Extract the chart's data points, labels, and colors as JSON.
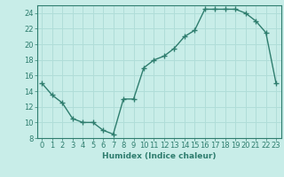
{
  "x": [
    0,
    1,
    2,
    3,
    4,
    5,
    6,
    7,
    8,
    9,
    10,
    11,
    12,
    13,
    14,
    15,
    16,
    17,
    18,
    19,
    20,
    21,
    22,
    23
  ],
  "y": [
    15,
    13.5,
    12.5,
    10.5,
    10,
    10,
    9,
    8.5,
    13,
    13,
    17,
    18,
    18.5,
    19.5,
    21,
    21.8,
    24.5,
    24.5,
    24.5,
    24.5,
    24,
    23,
    21.5,
    15
  ],
  "line_color": "#2e7d6e",
  "marker": "+",
  "marker_size": 4,
  "bg_color": "#c8ede8",
  "grid_color": "#b0ddd8",
  "tick_color": "#2e7d6e",
  "xlabel": "Humidex (Indice chaleur)",
  "xlim": [
    -0.5,
    23.5
  ],
  "ylim": [
    8,
    25
  ],
  "yticks": [
    8,
    10,
    12,
    14,
    16,
    18,
    20,
    22,
    24
  ],
  "xticks": [
    0,
    1,
    2,
    3,
    4,
    5,
    6,
    7,
    8,
    9,
    10,
    11,
    12,
    13,
    14,
    15,
    16,
    17,
    18,
    19,
    20,
    21,
    22,
    23
  ],
  "xlabel_fontsize": 6.5,
  "tick_fontsize": 6,
  "ylabel_fontsize": 6,
  "line_width": 1.0,
  "marker_color": "#2e7d6e"
}
